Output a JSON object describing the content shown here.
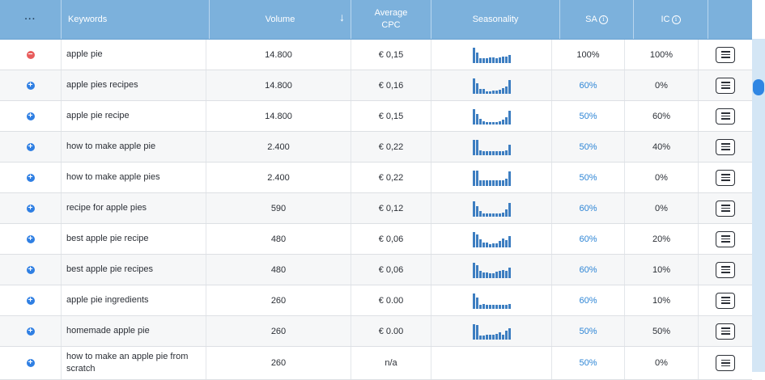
{
  "header": {
    "more": "···",
    "keywords": "Keywords",
    "volume": "Volume",
    "sort_arrow": "↓",
    "avg_cpc": "Average CPC",
    "seasonality": "Seasonality",
    "sa": "SA",
    "ic": "IC",
    "info": "i"
  },
  "rows": [
    {
      "action": "remove",
      "keyword": "apple pie",
      "volume": "14.800",
      "cpc": "€ 0,15",
      "sa": "100%",
      "sa_link": false,
      "ic": "100%",
      "spark": [
        19,
        13,
        6,
        6,
        6,
        7,
        7,
        6,
        7,
        8,
        8,
        10
      ]
    },
    {
      "action": "add",
      "keyword": "apple pies recipes",
      "volume": "14.800",
      "cpc": "€ 0,16",
      "sa": "60%",
      "sa_link": true,
      "ic": "0%",
      "spark": [
        19,
        13,
        6,
        6,
        3,
        3,
        4,
        4,
        5,
        7,
        9,
        17
      ]
    },
    {
      "action": "add",
      "keyword": "apple pie recipe",
      "volume": "14.800",
      "cpc": "€ 0,15",
      "sa": "50%",
      "sa_link": true,
      "ic": "60%",
      "spark": [
        19,
        13,
        7,
        4,
        3,
        3,
        3,
        3,
        4,
        6,
        9,
        17
      ]
    },
    {
      "action": "add",
      "keyword": "how to make apple pie",
      "volume": "2.400",
      "cpc": "€ 0,22",
      "sa": "50%",
      "sa_link": true,
      "ic": "40%",
      "spark": [
        19,
        19,
        6,
        5,
        5,
        5,
        5,
        5,
        5,
        5,
        6,
        13
      ]
    },
    {
      "action": "add",
      "keyword": "how to make apple pies",
      "volume": "2.400",
      "cpc": "€ 0,22",
      "sa": "50%",
      "sa_link": true,
      "ic": "0%",
      "spark": [
        17,
        17,
        6,
        6,
        6,
        6,
        6,
        6,
        6,
        6,
        8,
        16
      ]
    },
    {
      "action": "add",
      "keyword": "recipe for apple pies",
      "volume": "590",
      "cpc": "€ 0,12",
      "sa": "60%",
      "sa_link": true,
      "ic": "0%",
      "spark": [
        19,
        13,
        7,
        4,
        4,
        4,
        4,
        4,
        4,
        5,
        9,
        17
      ]
    },
    {
      "action": "add",
      "keyword": "best apple pie recipe",
      "volume": "480",
      "cpc": "€ 0,06",
      "sa": "60%",
      "sa_link": true,
      "ic": "20%",
      "spark": [
        19,
        16,
        10,
        6,
        6,
        4,
        5,
        5,
        8,
        11,
        9,
        14
      ]
    },
    {
      "action": "add",
      "keyword": "best apple pie recipes",
      "volume": "480",
      "cpc": "€ 0,06",
      "sa": "60%",
      "sa_link": true,
      "ic": "10%",
      "spark": [
        17,
        14,
        8,
        6,
        6,
        5,
        5,
        7,
        8,
        9,
        8,
        12
      ]
    },
    {
      "action": "add",
      "keyword": "apple pie ingredients",
      "volume": "260",
      "cpc": "€ 0.00",
      "sa": "60%",
      "sa_link": true,
      "ic": "10%",
      "spark": [
        18,
        13,
        5,
        6,
        5,
        5,
        5,
        5,
        5,
        5,
        5,
        6
      ]
    },
    {
      "action": "add",
      "keyword": "homemade apple pie",
      "volume": "260",
      "cpc": "€ 0.00",
      "sa": "50%",
      "sa_link": true,
      "ic": "50%",
      "spark": [
        19,
        18,
        5,
        5,
        6,
        6,
        6,
        7,
        9,
        6,
        11,
        14
      ]
    },
    {
      "action": "add",
      "keyword": "how to make an apple pie from scratch",
      "volume": "260",
      "cpc": "n/a",
      "sa": "50%",
      "sa_link": true,
      "ic": "0%",
      "spark": []
    }
  ],
  "colors": {
    "header_bg": "#7cb1dc",
    "add_icon": "#2f7fe3",
    "remove_icon": "#e85c5c",
    "link": "#2f86d6",
    "spark_bar": "#3d7ec1",
    "scroll_thumb": "#2f86e3"
  },
  "icons": {
    "add": "plus-circle-icon",
    "remove": "minus-circle-icon",
    "menu": "hamburger-menu-icon",
    "info": "info-icon",
    "sort": "sort-descending-arrow-icon"
  }
}
